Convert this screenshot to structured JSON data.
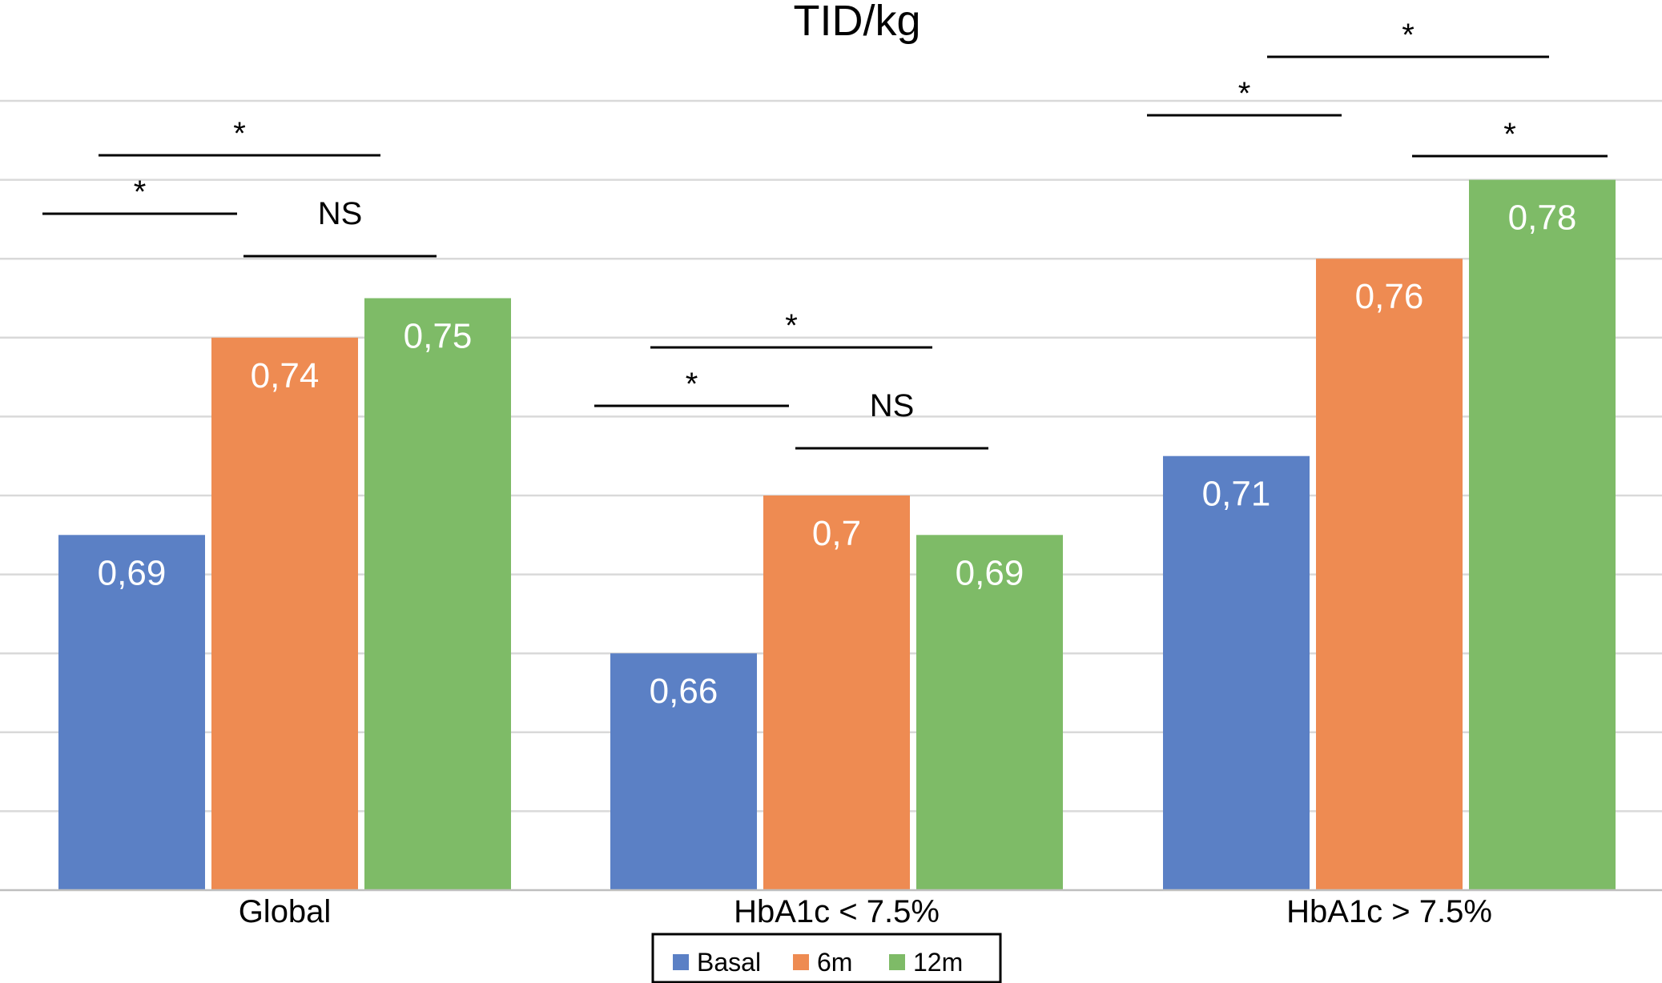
{
  "chart_data": {
    "type": "bar",
    "title": "TID/kg",
    "xlabel": "",
    "ylabel": "",
    "categories": [
      "Global",
      "HbA1c < 7.5%",
      "HbA1c > 7.5%"
    ],
    "series": [
      {
        "name": "Basal",
        "color": "#5b80c5",
        "values": [
          0.69,
          0.66,
          0.71
        ],
        "labels": [
          "0,69",
          "0,66",
          "0,71"
        ]
      },
      {
        "name": "6m",
        "color": "#ee8b52",
        "values": [
          0.74,
          0.7,
          0.76
        ],
        "labels": [
          "0,74",
          "0,7",
          "0,76"
        ]
      },
      {
        "name": "12m",
        "color": "#7ebb67",
        "values": [
          0.75,
          0.69,
          0.78
        ],
        "labels": [
          "0,75",
          "0,69",
          "0,78"
        ]
      }
    ],
    "ylim": [
      0.6,
      0.8
    ],
    "grid": true,
    "legend": "bottom-center",
    "significance": [
      {
        "category": 0,
        "from": "Basal",
        "to": "6m",
        "label": "*"
      },
      {
        "category": 0,
        "from": "Basal",
        "to": "12m",
        "label": "*"
      },
      {
        "category": 0,
        "from": "6m",
        "to": "12m",
        "label": "NS"
      },
      {
        "category": 1,
        "from": "Basal",
        "to": "6m",
        "label": "*"
      },
      {
        "category": 1,
        "from": "Basal",
        "to": "12m",
        "label": "*"
      },
      {
        "category": 1,
        "from": "6m",
        "to": "12m",
        "label": "NS"
      },
      {
        "category": 2,
        "from": "Basal",
        "to": "6m",
        "label": "*"
      },
      {
        "category": 2,
        "from": "Basal",
        "to": "12m",
        "label": "*"
      },
      {
        "category": 2,
        "from": "6m",
        "to": "12m",
        "label": "*"
      }
    ]
  }
}
